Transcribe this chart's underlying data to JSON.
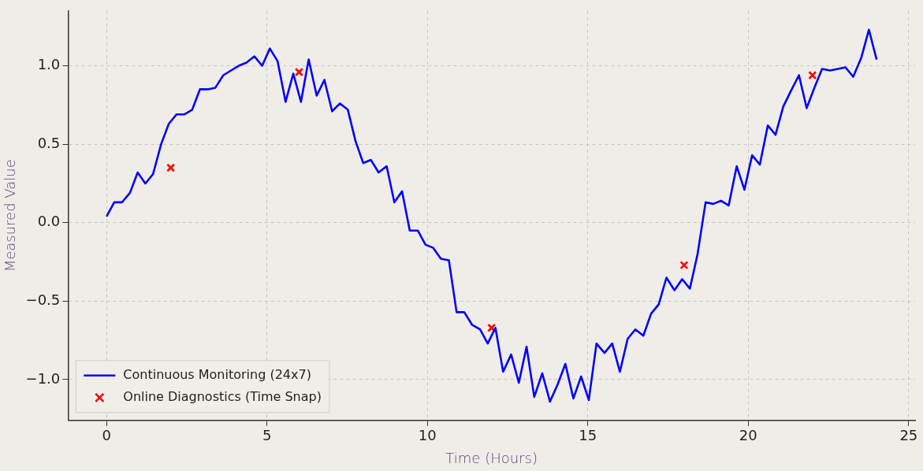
{
  "chart_data": {
    "type": "line",
    "xlabel": "Time (Hours)",
    "ylabel": "Measured Value",
    "xlim": [
      -1.2,
      25.2
    ],
    "xticks": [
      0,
      5,
      10,
      15,
      20,
      25
    ],
    "ylim": [
      -1.26,
      1.35
    ],
    "yticks": [
      {
        "value": -1,
        "label": "−1.0"
      },
      {
        "value": -0.5,
        "label": "−0.5"
      },
      {
        "value": 0,
        "label": "0.0"
      },
      {
        "value": 0.5,
        "label": "0.5"
      },
      {
        "value": 1,
        "label": "1.0"
      }
    ],
    "grid": true,
    "legend": "bottom left",
    "series": [
      {
        "name": "Continuous Monitoring (24x7)",
        "color": "#0000ff",
        "marker": "none",
        "line_style": "solid",
        "x": [
          0,
          0.24,
          0.48,
          0.73,
          0.97,
          1.21,
          1.45,
          1.7,
          1.94,
          2.18,
          2.42,
          2.67,
          2.91,
          3.15,
          3.39,
          3.64,
          3.88,
          4.12,
          4.36,
          4.61,
          4.85,
          5.09,
          5.33,
          5.58,
          5.82,
          6.06,
          6.3,
          6.55,
          6.79,
          7.03,
          7.27,
          7.52,
          7.76,
          8.0,
          8.24,
          8.48,
          8.73,
          8.97,
          9.21,
          9.45,
          9.7,
          9.94,
          10.18,
          10.42,
          10.67,
          10.91,
          11.15,
          11.39,
          11.64,
          11.88,
          12.12,
          12.36,
          12.61,
          12.85,
          13.09,
          13.33,
          13.58,
          13.82,
          14.06,
          14.3,
          14.55,
          14.79,
          15.03,
          15.27,
          15.52,
          15.76,
          16.0,
          16.24,
          16.48,
          16.73,
          16.97,
          17.21,
          17.45,
          17.7,
          17.94,
          18.18,
          18.42,
          18.67,
          18.91,
          19.15,
          19.39,
          19.64,
          19.88,
          20.12,
          20.36,
          20.61,
          20.85,
          21.09,
          21.33,
          21.58,
          21.82,
          22.06,
          22.3,
          22.55,
          22.79,
          23.03,
          23.27,
          23.52,
          23.76,
          24.0
        ],
        "values": [
          0.04,
          0.13,
          0.13,
          0.19,
          0.32,
          0.25,
          0.31,
          0.5,
          0.63,
          0.69,
          0.69,
          0.72,
          0.85,
          0.85,
          0.86,
          0.94,
          0.97,
          1.0,
          1.02,
          1.06,
          1.0,
          1.11,
          1.03,
          0.77,
          0.95,
          0.77,
          1.04,
          0.81,
          0.91,
          0.71,
          0.76,
          0.72,
          0.52,
          0.38,
          0.4,
          0.32,
          0.36,
          0.13,
          0.2,
          -0.05,
          -0.05,
          -0.14,
          -0.16,
          -0.23,
          -0.24,
          -0.57,
          -0.57,
          -0.65,
          -0.68,
          -0.77,
          -0.67,
          -0.95,
          -0.84,
          -1.02,
          -0.79,
          -1.11,
          -0.96,
          -1.14,
          -1.03,
          -0.9,
          -1.12,
          -0.98,
          -1.13,
          -0.77,
          -0.83,
          -0.77,
          -0.95,
          -0.74,
          -0.68,
          -0.72,
          -0.58,
          -0.52,
          -0.35,
          -0.43,
          -0.36,
          -0.42,
          -0.2,
          0.13,
          0.12,
          0.14,
          0.11,
          0.36,
          0.21,
          0.43,
          0.37,
          0.62,
          0.56,
          0.74,
          0.84,
          0.94,
          0.73,
          0.86,
          0.98,
          0.97,
          0.98,
          0.99,
          0.93,
          1.05,
          1.23,
          1.04
        ]
      },
      {
        "name": "Online Diagnostics (Time Snap)",
        "type": "scatter",
        "color": "#ff0000",
        "marker": "cross",
        "x": [
          2,
          6,
          12,
          18,
          22
        ],
        "values": [
          0.35,
          0.96,
          -0.67,
          -0.27,
          0.94
        ]
      }
    ]
  }
}
